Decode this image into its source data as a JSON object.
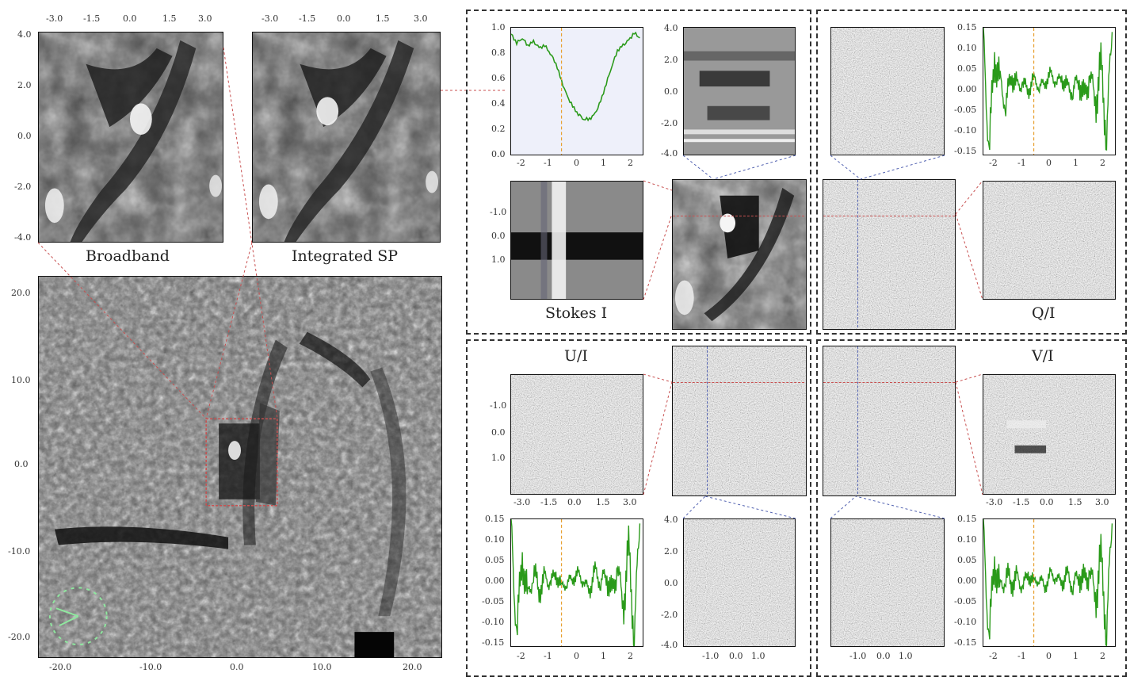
{
  "captions": {
    "broadband": "Broadband",
    "integrated": "Integrated SP",
    "stokes_i": "Stokes I",
    "q": "Q/I",
    "u": "U/I",
    "v": "V/I"
  },
  "axes": {
    "top_x": [
      "-3.0",
      "-1.5",
      "0.0",
      "1.5",
      "3.0"
    ],
    "top_y": [
      "4.0",
      "2.0",
      "0.0",
      "-2.0",
      "-4.0"
    ],
    "main_x": [
      "-20.0",
      "-10.0",
      "0.0",
      "10.0",
      "20.0"
    ],
    "main_y": [
      "20.0",
      "10.0",
      "0.0",
      "-10.0",
      "-20.0"
    ],
    "spec_x": [
      "-2",
      "-1",
      "0",
      "1",
      "2"
    ],
    "stokes_i_y": [
      "1.0",
      "0.8",
      "0.6",
      "0.4",
      "0.2",
      "0.0"
    ],
    "pol_y": [
      "0.15",
      "0.10",
      "0.05",
      "0.00",
      "-0.05",
      "-0.10",
      "-0.15"
    ],
    "slit_y": [
      "4.0",
      "2.0",
      "0.0",
      "-2.0",
      "-4.0"
    ],
    "small_y": [
      "-1.0",
      "0.0",
      "1.0"
    ],
    "small_x": [
      "-3.0",
      "-1.5",
      "0.0",
      "1.5",
      "3.0"
    ],
    "slit_x": [
      "-1.0",
      "0.0",
      "1.0"
    ]
  },
  "colors": {
    "spectrum": "#2a9a1a",
    "marker": "#e8a030",
    "zoom_red": "#c85050",
    "zoom_blue": "#5060b0"
  },
  "chart_data": [
    {
      "type": "line",
      "name": "stokes-i-profile",
      "x": [
        -2.2,
        -2.0,
        -1.8,
        -1.6,
        -1.4,
        -1.2,
        -1.0,
        -0.8,
        -0.6,
        -0.4,
        -0.2,
        0.0,
        0.2,
        0.4,
        0.6,
        0.8,
        1.0,
        1.2,
        1.4,
        1.6,
        1.8,
        2.0,
        2.2,
        2.4
      ],
      "values": [
        0.95,
        0.88,
        0.92,
        0.86,
        0.89,
        0.84,
        0.86,
        0.8,
        0.72,
        0.58,
        0.46,
        0.38,
        0.32,
        0.28,
        0.28,
        0.32,
        0.42,
        0.56,
        0.7,
        0.82,
        0.86,
        0.9,
        0.96,
        0.92
      ],
      "xlim": [
        -2.2,
        2.5
      ],
      "ylim": [
        0.0,
        1.0
      ],
      "marker_x": -0.4
    },
    {
      "type": "line",
      "name": "stokes-q-profile",
      "x": [
        -2.2,
        -2.0,
        -1.8,
        -1.6,
        -1.4,
        -1.2,
        -1.0,
        -0.8,
        -0.6,
        -0.4,
        -0.2,
        0.0,
        0.2,
        0.4,
        0.6,
        0.8,
        1.0,
        1.2,
        1.4,
        1.6,
        1.8,
        2.0,
        2.2,
        2.4
      ],
      "values": [
        0.12,
        -0.14,
        0.08,
        0.02,
        -0.03,
        0.04,
        0.01,
        0.02,
        0.0,
        0.03,
        0.01,
        0.02,
        0.04,
        0.02,
        0.03,
        0.01,
        0.0,
        0.03,
        -0.02,
        0.04,
        -0.03,
        0.06,
        -0.1,
        0.14
      ],
      "xlim": [
        -2.2,
        2.5
      ],
      "ylim": [
        -0.15,
        0.15
      ],
      "marker_x": -0.4
    },
    {
      "type": "line",
      "name": "stokes-u-profile",
      "x": [
        -2.2,
        -2.0,
        -1.8,
        -1.6,
        -1.4,
        -1.2,
        -1.0,
        -0.8,
        -0.6,
        -0.4,
        -0.2,
        0.0,
        0.2,
        0.4,
        0.6,
        0.8,
        1.0,
        1.2,
        1.4,
        1.6,
        1.8,
        2.0,
        2.2,
        2.4
      ],
      "values": [
        0.13,
        -0.12,
        0.06,
        -0.04,
        0.03,
        -0.02,
        0.01,
        0.0,
        0.02,
        -0.01,
        0.0,
        0.01,
        0.02,
        0.0,
        -0.02,
        0.03,
        0.0,
        0.02,
        -0.03,
        0.04,
        -0.06,
        0.08,
        -0.12,
        0.14
      ],
      "xlim": [
        -2.2,
        2.5
      ],
      "ylim": [
        -0.15,
        0.15
      ],
      "marker_x": -0.4
    },
    {
      "type": "line",
      "name": "stokes-v-profile",
      "x": [
        -2.2,
        -2.0,
        -1.8,
        -1.6,
        -1.4,
        -1.2,
        -1.0,
        -0.8,
        -0.6,
        -0.4,
        -0.2,
        0.0,
        0.2,
        0.4,
        0.6,
        0.8,
        1.0,
        1.2,
        1.4,
        1.6,
        1.8,
        2.0,
        2.2,
        2.4
      ],
      "values": [
        0.12,
        -0.13,
        0.05,
        -0.02,
        0.02,
        0.0,
        0.01,
        -0.01,
        0.02,
        0.0,
        0.01,
        -0.01,
        0.02,
        0.01,
        0.0,
        0.02,
        -0.01,
        0.02,
        0.0,
        0.03,
        -0.04,
        0.06,
        -0.11,
        0.14
      ],
      "xlim": [
        -2.2,
        2.5
      ],
      "ylim": [
        -0.15,
        0.15
      ],
      "marker_x": -0.4
    }
  ]
}
